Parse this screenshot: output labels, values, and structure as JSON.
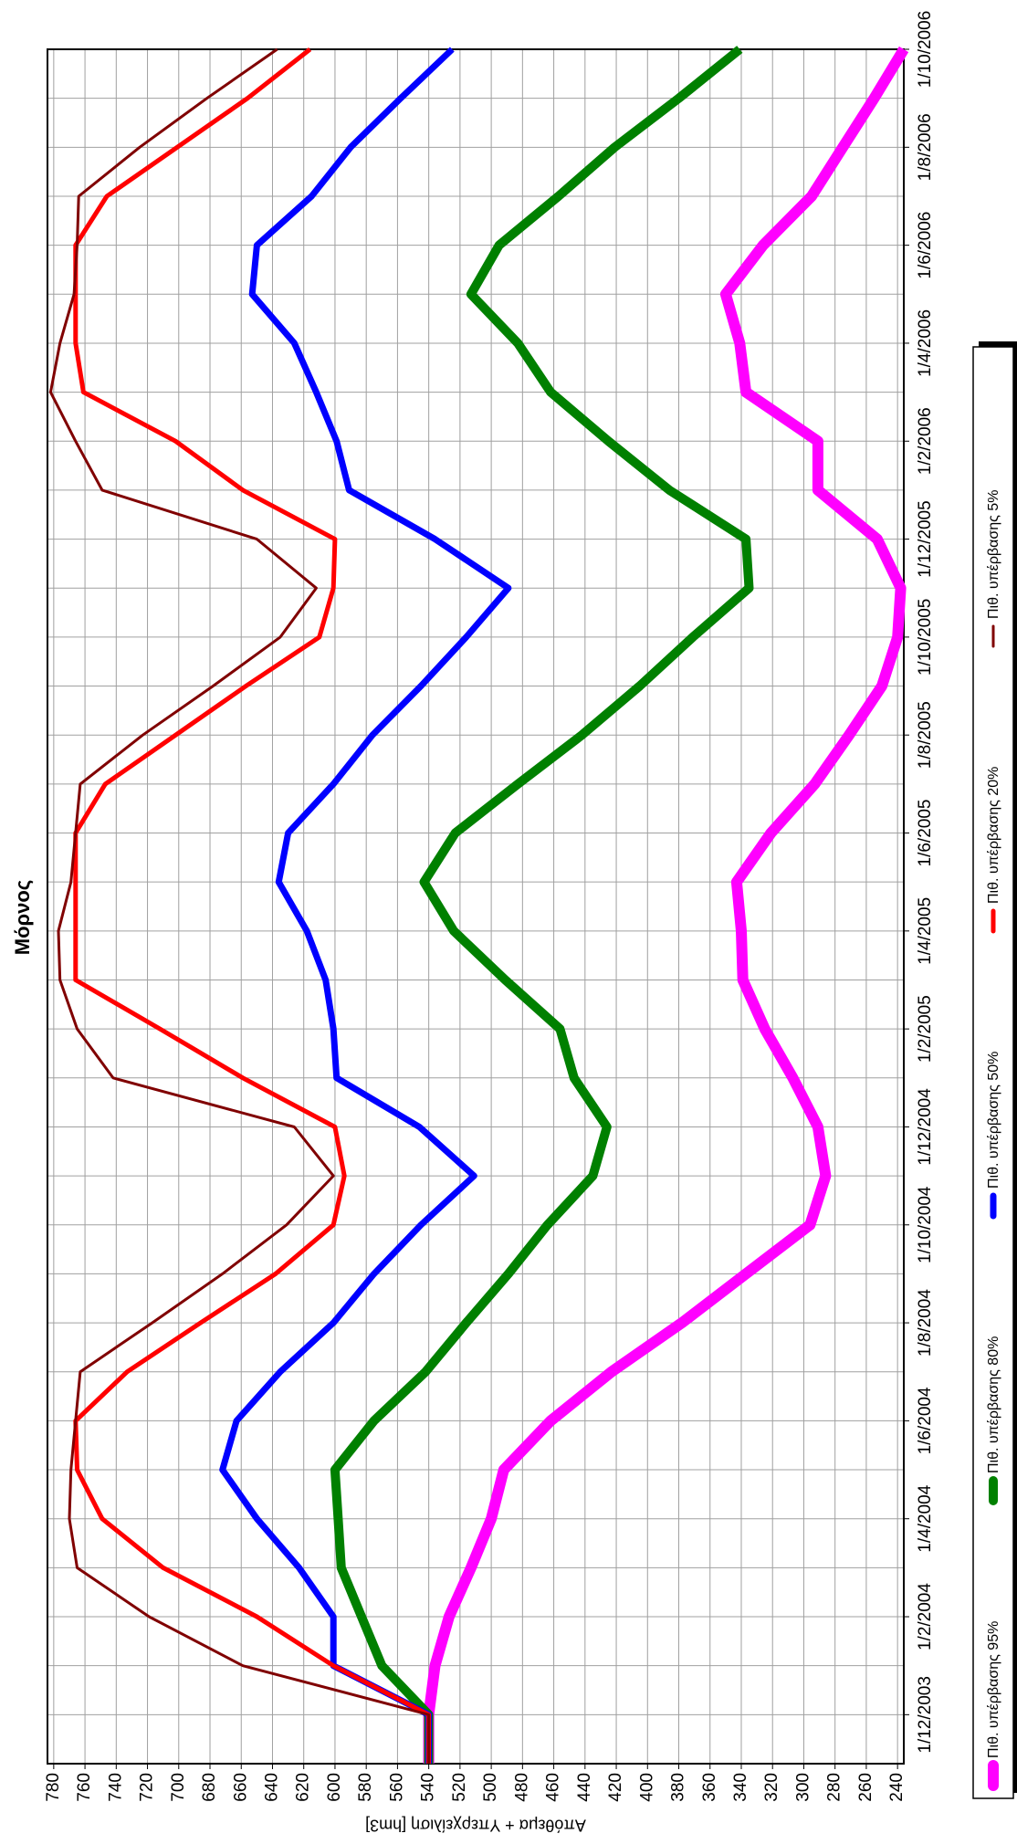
{
  "chart_data": {
    "type": "line",
    "title": "Μόρνος",
    "y_label": "Απόθεμα + Υπερχείλιση [hm3]",
    "categories": [
      null,
      "1/12/2003",
      null,
      "1/2/2004",
      null,
      "1/4/2004",
      null,
      "1/6/2004",
      null,
      "1/8/2004",
      null,
      "1/10/2004",
      null,
      "1/12/2004",
      null,
      "1/2/2005",
      null,
      "1/4/2005",
      null,
      "1/6/2005",
      null,
      "1/8/2005",
      null,
      "1/10/2005",
      null,
      "1/12/2005",
      null,
      "1/2/2006",
      null,
      "1/4/2006",
      null,
      "1/6/2006",
      null,
      "1/8/2006",
      null,
      "1/10/2006"
    ],
    "series": [
      {
        "name": "Πιθ. υπέρβασης 95%",
        "color": "#ff00ff",
        "width": 12,
        "values": [
          540,
          540,
          536,
          527,
          513,
          500,
          492,
          462,
          423,
          378,
          337,
          296,
          286,
          291,
          307,
          325,
          339,
          340,
          343,
          321,
          293,
          271,
          250,
          240,
          238,
          253,
          291,
          291,
          337,
          341,
          350,
          326,
          295,
          275,
          255,
          236
        ]
      },
      {
        "name": "Πιθ. υπέρβασης 80%",
        "color": "#008000",
        "width": 10,
        "values": [
          540,
          540,
          570,
          583,
          596,
          598,
          600,
          575,
          542,
          516,
          489,
          464,
          435,
          426,
          447,
          456,
          491,
          524,
          543,
          523,
          483,
          442,
          405,
          371,
          335,
          337,
          386,
          425,
          462,
          483,
          513,
          495,
          457,
          421,
          380,
          341
        ]
      },
      {
        "name": "Πιθ. υπέρβασης 50%",
        "color": "#0000ff",
        "width": 7,
        "values": [
          540,
          540,
          601,
          601,
          623,
          650,
          672,
          663,
          635,
          601,
          575,
          545,
          511,
          546,
          599,
          601,
          606,
          618,
          636,
          630,
          601,
          576,
          545,
          516,
          489,
          536,
          591,
          599,
          612,
          626,
          653,
          650,
          615,
          590,
          558,
          525
        ]
      },
      {
        "name": "Πιθ. υπέρβασης 20%",
        "color": "#ff0000",
        "width": 5,
        "values": [
          540,
          540,
          601,
          650,
          710,
          749,
          765,
          766,
          733,
          686,
          638,
          601,
          594,
          600,
          659,
          712,
          766,
          766,
          766,
          766,
          747,
          702,
          657,
          610,
          601,
          600,
          659,
          702,
          761,
          766,
          766,
          766,
          746,
          701,
          656,
          616
        ]
      },
      {
        "name": "Πιθ. υπέρβασης 5%",
        "color": "#800000",
        "width": 3,
        "values": [
          540,
          540,
          659,
          719,
          765,
          770,
          769,
          766,
          763,
          717,
          672,
          631,
          601,
          626,
          742,
          765,
          776,
          777,
          769,
          766,
          763,
          723,
          678,
          635,
          612,
          650,
          749,
          766,
          782,
          776,
          767,
          765,
          764,
          725,
          682,
          637
        ]
      }
    ],
    "ylim": [
      236,
      784
    ],
    "yticks": [
      240,
      260,
      280,
      300,
      320,
      340,
      360,
      380,
      400,
      420,
      440,
      460,
      480,
      500,
      520,
      540,
      560,
      580,
      600,
      620,
      640,
      660,
      680,
      700,
      720,
      740,
      760,
      780
    ],
    "grid": true
  }
}
